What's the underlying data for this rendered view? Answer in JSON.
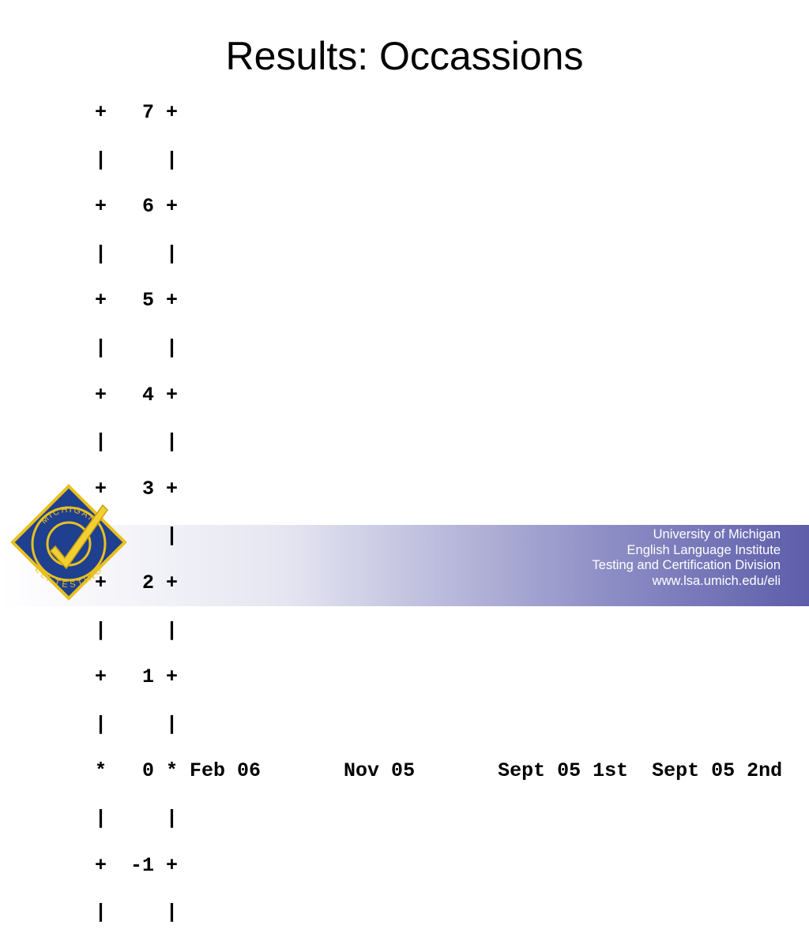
{
  "slide": {
    "title": "Results: Occassions",
    "ruler_lines": [
      "+   7 +",
      "|     |",
      "+   6 +",
      "|     |",
      "+   5 +",
      "|     |",
      "+   4 +",
      "|     |",
      "+   3 +",
      "|     |",
      "+   2 +",
      "|     |",
      "+   1 +",
      "|     |",
      "*   0 * Feb 06       Nov 05       Sept 05 1st  Sept 05 2nd",
      "|     |",
      "+  -1 +",
      "|     |"
    ],
    "footer": [
      "University of Michigan",
      "English Language Institute",
      "Testing and Certification Division",
      "www.lsa.umich.edu/eli"
    ],
    "logo": {
      "top_text": "MICHIGAN",
      "bottom_text": "ELI TESTING"
    }
  }
}
